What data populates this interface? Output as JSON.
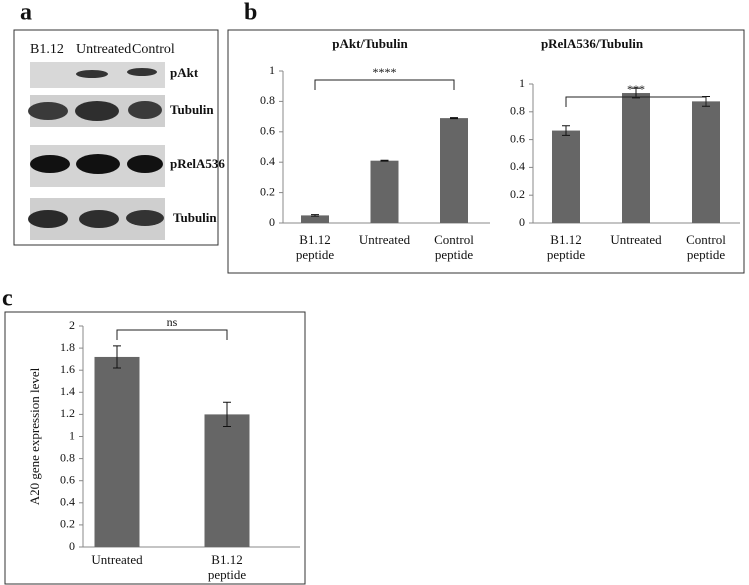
{
  "panel_labels": [
    "a",
    "b",
    "c"
  ],
  "blot": {
    "lanes": [
      "B1.12",
      "Untreated",
      "Control"
    ],
    "rows": [
      "pAkt",
      "Tubulin",
      "pRelA536",
      "Tubulin"
    ]
  },
  "chart_data": [
    {
      "type": "bar",
      "title": "pAkt/Tubulin",
      "categories": [
        "B1.12 peptide",
        "Untreated",
        "Control peptide"
      ],
      "values": [
        0.05,
        0.41,
        0.69
      ],
      "errors": [
        0.005,
        0.003,
        0.003
      ],
      "color": "#666666",
      "ylim": [
        0,
        1
      ],
      "yticks": [
        0,
        0.2,
        0.4,
        0.6,
        0.8,
        1
      ],
      "annotation": "****"
    },
    {
      "type": "bar",
      "title": "pRelA536/Tubulin",
      "categories": [
        "B1.12 peptide",
        "Untreated",
        "Control peptide"
      ],
      "values": [
        0.665,
        0.935,
        0.875
      ],
      "errors": [
        0.035,
        0.035,
        0.035
      ],
      "color": "#666666",
      "ylim": [
        0,
        1
      ],
      "yticks": [
        0,
        0.2,
        0.4,
        0.6,
        0.8,
        1
      ],
      "annotation": "***"
    },
    {
      "type": "bar",
      "y_label": "A20 gene expression level",
      "categories": [
        "Untreated",
        "B1.12 peptide"
      ],
      "values": [
        1.72,
        1.2
      ],
      "errors": [
        0.1,
        0.11
      ],
      "color": "#666666",
      "ylim": [
        0,
        2
      ],
      "yticks": [
        0,
        0.2,
        0.4,
        0.6,
        0.8,
        1,
        1.2,
        1.4,
        1.6,
        1.8,
        2
      ],
      "annotation": "ns"
    }
  ]
}
